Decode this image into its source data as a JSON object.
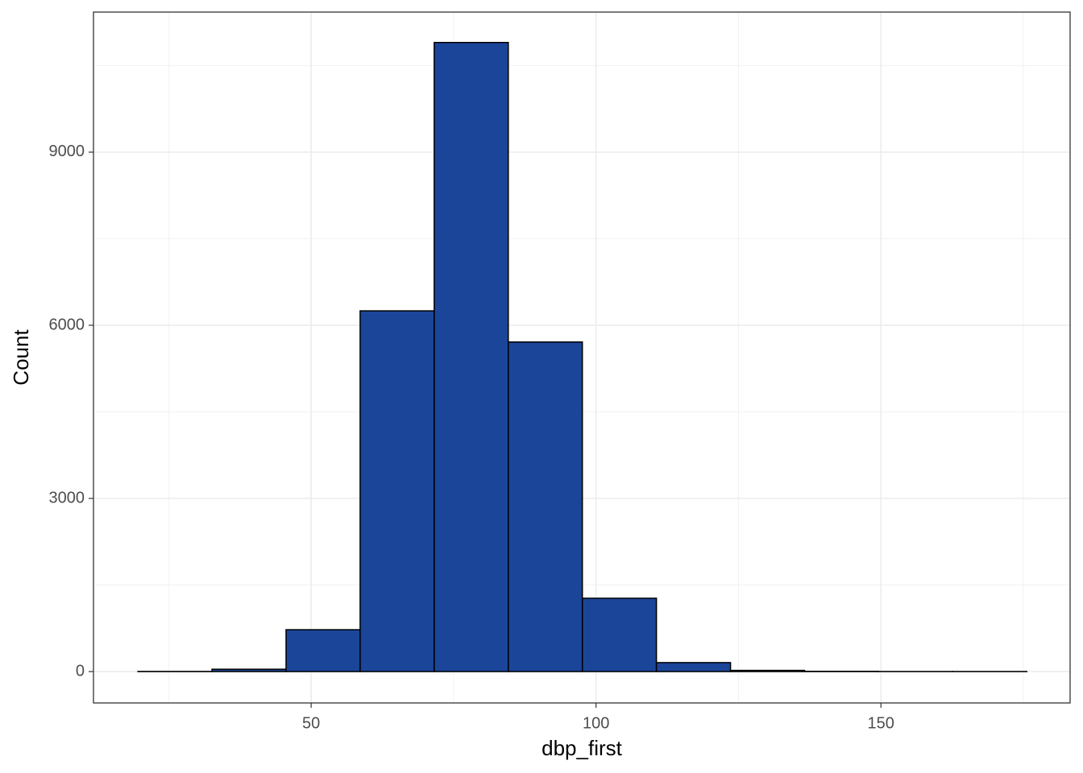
{
  "chart_data": {
    "type": "histogram",
    "x_label": "dbp_first",
    "y_label": "Count",
    "bins": [
      19.6,
      32.6,
      45.6,
      58.6,
      71.6,
      84.6,
      97.6,
      110.6,
      123.6,
      136.6,
      149.6,
      162.6,
      175.6
    ],
    "values": [
      2,
      40,
      725,
      6250,
      10900,
      5710,
      1270,
      155,
      20,
      4,
      1,
      1
    ],
    "color": "#1a4599",
    "edge_color": "#000000",
    "xlim": [
      11.8,
      183.2
    ],
    "xticks": [
      50,
      100,
      150
    ],
    "ylim": [
      -544,
      11427
    ],
    "yticks": [
      0,
      3000,
      6000,
      9000
    ],
    "grid": true
  }
}
